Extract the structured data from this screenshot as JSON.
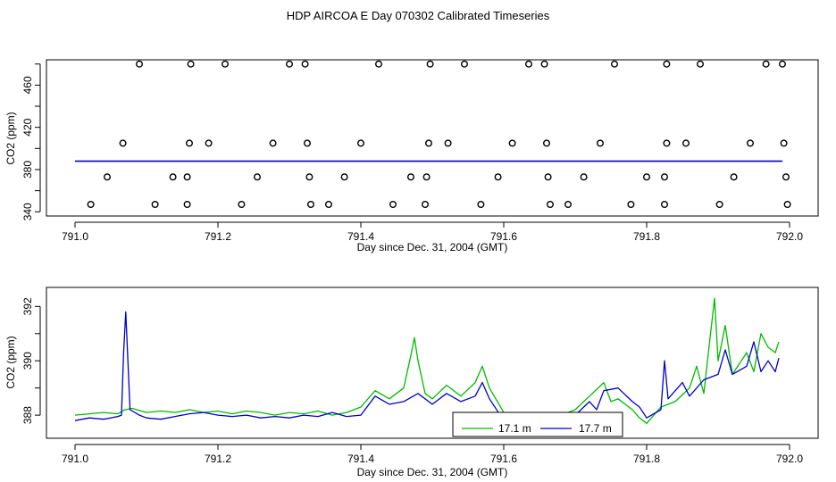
{
  "title": "HDP AIRCOA E  Day 070302  Calibrated Timeseries",
  "chart_data": [
    {
      "type": "scatter",
      "xlabel": "Day since Dec. 31, 2004 (GMT)",
      "ylabel": "CO2 (ppm)",
      "xlim": [
        790.96,
        792.04
      ],
      "ylim": [
        336,
        484
      ],
      "xticks": [
        "791.0",
        "791.2",
        "791.4",
        "791.6",
        "791.8",
        "792.0"
      ],
      "yticks": [
        "340",
        "380",
        "420",
        "460"
      ],
      "minor_yticks": [
        360,
        400,
        440,
        480
      ],
      "line": {
        "color": "#0000cc",
        "x_start": 791.0,
        "x_end": 791.99,
        "y": 388
      },
      "points": [
        {
          "x": 791.09,
          "y": 480
        },
        {
          "x": 791.162,
          "y": 480
        },
        {
          "x": 791.21,
          "y": 480
        },
        {
          "x": 791.3,
          "y": 480
        },
        {
          "x": 791.322,
          "y": 480
        },
        {
          "x": 791.425,
          "y": 480
        },
        {
          "x": 791.497,
          "y": 480
        },
        {
          "x": 791.545,
          "y": 480
        },
        {
          "x": 791.635,
          "y": 480
        },
        {
          "x": 791.657,
          "y": 480
        },
        {
          "x": 791.755,
          "y": 480
        },
        {
          "x": 791.828,
          "y": 480
        },
        {
          "x": 791.875,
          "y": 480
        },
        {
          "x": 791.967,
          "y": 480
        },
        {
          "x": 791.99,
          "y": 480
        },
        {
          "x": 791.067,
          "y": 405
        },
        {
          "x": 791.16,
          "y": 405
        },
        {
          "x": 791.187,
          "y": 405
        },
        {
          "x": 791.277,
          "y": 405
        },
        {
          "x": 791.325,
          "y": 405
        },
        {
          "x": 791.4,
          "y": 405
        },
        {
          "x": 791.495,
          "y": 405
        },
        {
          "x": 791.522,
          "y": 405
        },
        {
          "x": 791.612,
          "y": 405
        },
        {
          "x": 791.66,
          "y": 405
        },
        {
          "x": 791.735,
          "y": 405
        },
        {
          "x": 791.828,
          "y": 405
        },
        {
          "x": 791.855,
          "y": 405
        },
        {
          "x": 791.945,
          "y": 405
        },
        {
          "x": 791.992,
          "y": 405
        },
        {
          "x": 791.045,
          "y": 373
        },
        {
          "x": 791.137,
          "y": 373
        },
        {
          "x": 791.157,
          "y": 373
        },
        {
          "x": 791.255,
          "y": 373
        },
        {
          "x": 791.328,
          "y": 373
        },
        {
          "x": 791.377,
          "y": 373
        },
        {
          "x": 791.47,
          "y": 373
        },
        {
          "x": 791.492,
          "y": 373
        },
        {
          "x": 791.592,
          "y": 373
        },
        {
          "x": 791.662,
          "y": 373
        },
        {
          "x": 791.712,
          "y": 373
        },
        {
          "x": 791.8,
          "y": 373
        },
        {
          "x": 791.825,
          "y": 373
        },
        {
          "x": 791.922,
          "y": 373
        },
        {
          "x": 791.995,
          "y": 373
        },
        {
          "x": 791.022,
          "y": 347
        },
        {
          "x": 791.112,
          "y": 347
        },
        {
          "x": 791.157,
          "y": 347
        },
        {
          "x": 791.233,
          "y": 347
        },
        {
          "x": 791.33,
          "y": 347
        },
        {
          "x": 791.355,
          "y": 347
        },
        {
          "x": 791.445,
          "y": 347
        },
        {
          "x": 791.49,
          "y": 347
        },
        {
          "x": 791.568,
          "y": 347
        },
        {
          "x": 791.665,
          "y": 347
        },
        {
          "x": 791.69,
          "y": 347
        },
        {
          "x": 791.778,
          "y": 347
        },
        {
          "x": 791.825,
          "y": 347
        },
        {
          "x": 791.902,
          "y": 347
        },
        {
          "x": 791.997,
          "y": 347
        }
      ]
    },
    {
      "type": "line",
      "xlabel": "Day since Dec. 31, 2004 (GMT)",
      "ylabel": "CO2 (ppm)",
      "xlim": [
        790.96,
        792.04
      ],
      "ylim": [
        387.15,
        392.7
      ],
      "xticks": [
        "791.0",
        "791.2",
        "791.4",
        "791.6",
        "791.8",
        "792.0"
      ],
      "yticks": [
        "388",
        "390",
        "392"
      ],
      "minor_yticks": [
        389,
        391
      ],
      "legend": "bottom-center",
      "series": [
        {
          "name": "17.1 m",
          "color": "#00bb00",
          "points": [
            [
              791.0,
              388.0
            ],
            [
              791.02,
              388.05
            ],
            [
              791.04,
              388.1
            ],
            [
              791.06,
              388.05
            ],
            [
              791.07,
              388.2
            ],
            [
              791.08,
              388.25
            ],
            [
              791.1,
              388.1
            ],
            [
              791.12,
              388.15
            ],
            [
              791.14,
              388.1
            ],
            [
              791.16,
              388.2
            ],
            [
              791.18,
              388.1
            ],
            [
              791.2,
              388.15
            ],
            [
              791.22,
              388.05
            ],
            [
              791.24,
              388.15
            ],
            [
              791.26,
              388.1
            ],
            [
              791.28,
              388.0
            ],
            [
              791.3,
              388.1
            ],
            [
              791.32,
              388.05
            ],
            [
              791.34,
              388.15
            ],
            [
              791.36,
              388.0
            ],
            [
              791.38,
              388.1
            ],
            [
              791.4,
              388.3
            ],
            [
              791.42,
              388.9
            ],
            [
              791.44,
              388.6
            ],
            [
              791.46,
              389.0
            ],
            [
              791.47,
              390.2
            ],
            [
              791.475,
              390.85
            ],
            [
              791.48,
              390.0
            ],
            [
              791.49,
              388.8
            ],
            [
              791.5,
              388.6
            ],
            [
              791.52,
              389.1
            ],
            [
              791.54,
              388.7
            ],
            [
              791.56,
              389.2
            ],
            [
              791.57,
              389.8
            ],
            [
              791.58,
              389.0
            ],
            [
              791.6,
              388.1
            ],
            [
              791.62,
              388.0
            ],
            [
              791.64,
              387.8
            ],
            [
              791.66,
              387.8
            ],
            [
              791.67,
              387.85
            ],
            [
              791.68,
              388.0
            ],
            [
              791.7,
              388.2
            ],
            [
              791.72,
              388.7
            ],
            [
              791.74,
              389.2
            ],
            [
              791.75,
              388.5
            ],
            [
              791.76,
              388.6
            ],
            [
              791.78,
              388.2
            ],
            [
              791.79,
              387.9
            ],
            [
              791.8,
              387.7
            ],
            [
              791.82,
              388.3
            ],
            [
              791.84,
              388.5
            ],
            [
              791.86,
              389.0
            ],
            [
              791.87,
              389.8
            ],
            [
              791.88,
              388.8
            ],
            [
              791.895,
              392.3
            ],
            [
              791.9,
              390.0
            ],
            [
              791.91,
              391.3
            ],
            [
              791.92,
              389.5
            ],
            [
              791.94,
              390.3
            ],
            [
              791.95,
              389.6
            ],
            [
              791.96,
              391.0
            ],
            [
              791.97,
              390.5
            ],
            [
              791.98,
              390.3
            ],
            [
              791.985,
              390.7
            ]
          ]
        },
        {
          "name": "17.7 m",
          "color": "#0000cc",
          "points": [
            [
              791.0,
              387.8
            ],
            [
              791.02,
              387.9
            ],
            [
              791.04,
              387.85
            ],
            [
              791.06,
              387.95
            ],
            [
              791.065,
              388.0
            ],
            [
              791.068,
              390.3
            ],
            [
              791.071,
              391.8
            ],
            [
              791.074,
              390.0
            ],
            [
              791.077,
              388.2
            ],
            [
              791.09,
              388.0
            ],
            [
              791.1,
              387.9
            ],
            [
              791.12,
              387.85
            ],
            [
              791.14,
              387.95
            ],
            [
              791.16,
              388.05
            ],
            [
              791.18,
              388.1
            ],
            [
              791.2,
              388.0
            ],
            [
              791.22,
              387.95
            ],
            [
              791.24,
              388.0
            ],
            [
              791.26,
              387.9
            ],
            [
              791.28,
              387.95
            ],
            [
              791.3,
              387.9
            ],
            [
              791.32,
              388.0
            ],
            [
              791.34,
              387.95
            ],
            [
              791.36,
              388.1
            ],
            [
              791.38,
              387.95
            ],
            [
              791.4,
              388.0
            ],
            [
              791.42,
              388.7
            ],
            [
              791.44,
              388.4
            ],
            [
              791.46,
              388.5
            ],
            [
              791.48,
              388.8
            ],
            [
              791.5,
              388.4
            ],
            [
              791.52,
              388.8
            ],
            [
              791.54,
              388.5
            ],
            [
              791.56,
              388.7
            ],
            [
              791.57,
              389.2
            ],
            [
              791.58,
              388.6
            ],
            [
              791.6,
              387.8
            ],
            [
              791.62,
              387.7
            ],
            [
              791.64,
              387.6
            ],
            [
              791.66,
              387.55
            ],
            [
              791.68,
              387.8
            ],
            [
              791.7,
              388.0
            ],
            [
              791.72,
              388.5
            ],
            [
              791.73,
              388.2
            ],
            [
              791.74,
              388.9
            ],
            [
              791.76,
              389.0
            ],
            [
              791.78,
              388.5
            ],
            [
              791.79,
              388.3
            ],
            [
              791.8,
              387.9
            ],
            [
              791.82,
              388.2
            ],
            [
              791.825,
              390.0
            ],
            [
              791.83,
              388.6
            ],
            [
              791.85,
              389.2
            ],
            [
              791.86,
              388.7
            ],
            [
              791.88,
              389.3
            ],
            [
              791.9,
              389.5
            ],
            [
              791.91,
              390.4
            ],
            [
              791.92,
              389.5
            ],
            [
              791.94,
              389.8
            ],
            [
              791.95,
              390.7
            ],
            [
              791.96,
              389.6
            ],
            [
              791.97,
              390.0
            ],
            [
              791.98,
              389.6
            ],
            [
              791.985,
              390.1
            ]
          ]
        }
      ]
    }
  ]
}
